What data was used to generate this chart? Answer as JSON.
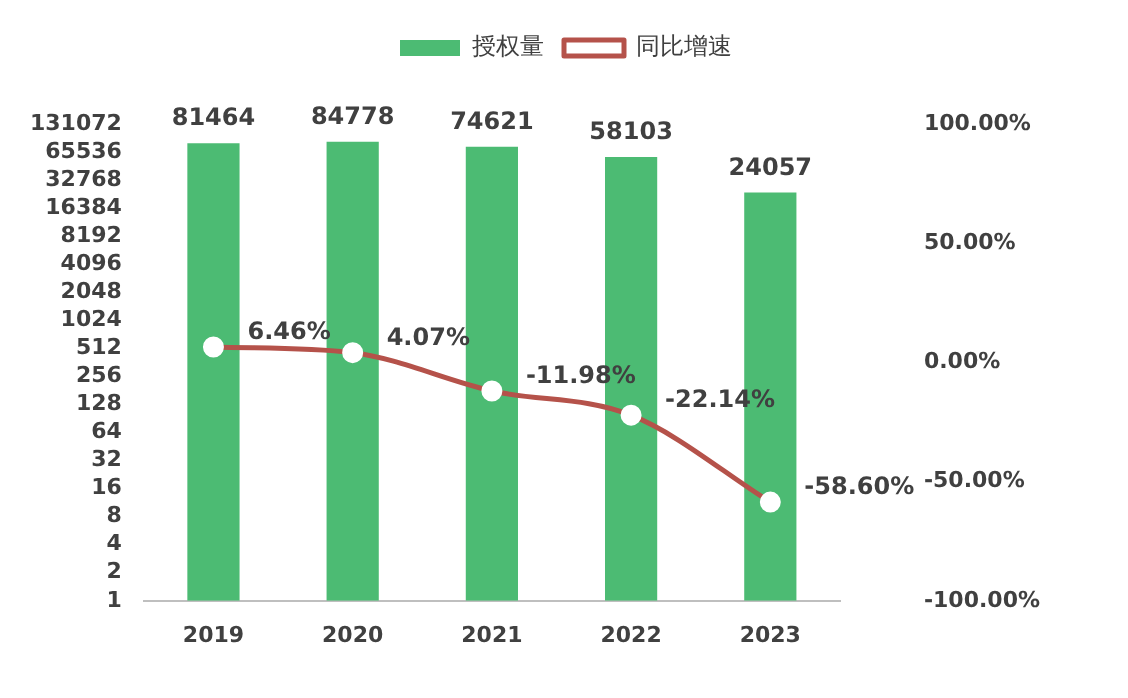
{
  "chart_data": {
    "type": "bar",
    "categories": [
      "2019",
      "2020",
      "2021",
      "2022",
      "2023"
    ],
    "series": [
      {
        "name": "授权量",
        "color": "#4cbb73",
        "values": [
          81464,
          84778,
          74621,
          58103,
          24057
        ],
        "value_labels": [
          "81464",
          "84778",
          "74621",
          "58103",
          "24057"
        ]
      },
      {
        "name": "同比增速",
        "type": "line",
        "axis": "y2",
        "color": "#b5524a",
        "marker": "circle",
        "values": [
          6.46,
          4.07,
          -11.98,
          -22.14,
          -58.6
        ],
        "value_labels": [
          "6.46%",
          "4.07%",
          "-11.98%",
          "-22.14%",
          "-58.60%"
        ]
      }
    ],
    "log": "y",
    "ylim": [
      1,
      131072
    ],
    "yticks": [
      1,
      2,
      4,
      8,
      16,
      32,
      64,
      128,
      256,
      512,
      1024,
      2048,
      4096,
      8192,
      16384,
      32768,
      65536,
      131072
    ],
    "y2lim": [
      -100,
      100
    ],
    "y2ticks": [
      {
        "value": -100,
        "label": "-100.00%"
      },
      {
        "value": -50,
        "label": "-50.00%"
      },
      {
        "value": 0,
        "label": "0.00%"
      },
      {
        "value": 50,
        "label": "50.00%"
      },
      {
        "value": 100,
        "label": "100.00%"
      }
    ],
    "legend": "top"
  }
}
